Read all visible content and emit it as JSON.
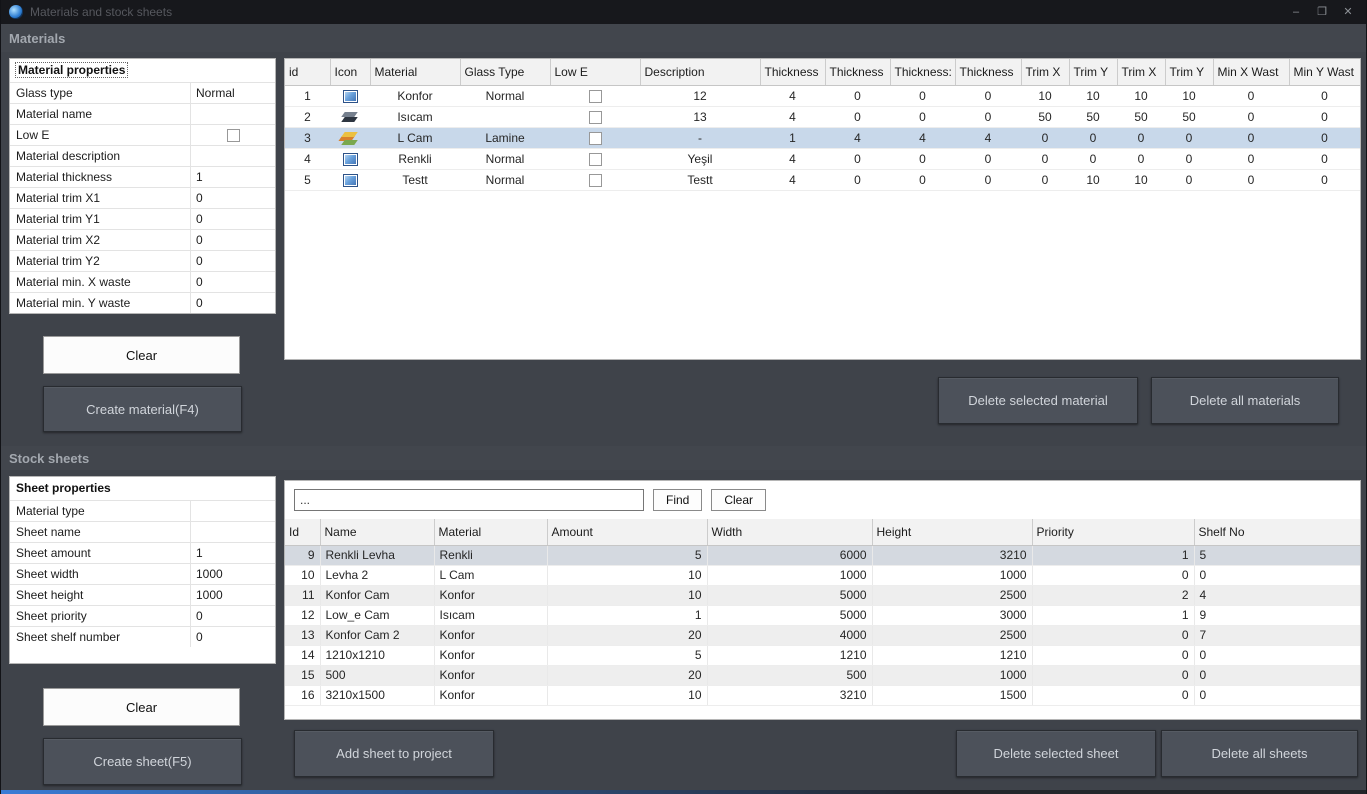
{
  "window": {
    "title": "Materials and stock sheets",
    "controls": {
      "minimize": "–",
      "maximize": "❐",
      "close": "✕"
    }
  },
  "materials": {
    "section_title": "Materials",
    "properties": {
      "title": "Material properties",
      "fields": [
        {
          "label": "Glass type",
          "value": "Normal",
          "type": "text"
        },
        {
          "label": "Material name",
          "value": "",
          "type": "text"
        },
        {
          "label": "Low E",
          "value": "",
          "type": "checkbox",
          "checked": false
        },
        {
          "label": "Material description",
          "value": "",
          "type": "text"
        },
        {
          "label": "Material thickness",
          "value": "1",
          "type": "text"
        },
        {
          "label": "Material trim X1",
          "value": "0",
          "type": "text"
        },
        {
          "label": "Material trim Y1",
          "value": "0",
          "type": "text"
        },
        {
          "label": "Material trim X2",
          "value": "0",
          "type": "text"
        },
        {
          "label": "Material trim Y2",
          "value": "0",
          "type": "text"
        },
        {
          "label": "Material min. X waste",
          "value": "0",
          "type": "text"
        },
        {
          "label": "Material min. Y waste",
          "value": "0",
          "type": "text"
        }
      ],
      "clear_label": "Clear",
      "create_label": "Create material(F4)"
    },
    "table": {
      "columns": [
        "id",
        "Icon",
        "Material",
        "Glass Type",
        "Low E",
        "Description",
        "Thickness",
        "Thickness",
        "Thickness:",
        "Thickness",
        "Trim X",
        "Trim Y",
        "Trim X",
        "Trim Y",
        "Min X Wast",
        "Min Y Wast"
      ],
      "rows": [
        {
          "id": "1",
          "icon": "blue-glass-icon",
          "material": "Konfor",
          "glass_type": "Normal",
          "low_e": false,
          "description": "12",
          "values": [
            "4",
            "0",
            "0",
            "0",
            "10",
            "10",
            "10",
            "10",
            "0",
            "0"
          ],
          "selected": false
        },
        {
          "id": "2",
          "icon": "insulated-glass-icon",
          "material": "Isıcam",
          "glass_type": "",
          "low_e": false,
          "description": "13",
          "values": [
            "4",
            "0",
            "0",
            "0",
            "50",
            "50",
            "50",
            "50",
            "0",
            "0"
          ],
          "selected": false
        },
        {
          "id": "3",
          "icon": "laminated-glass-icon",
          "material": "L Cam",
          "glass_type": "Lamine",
          "low_e": false,
          "description": "-",
          "values": [
            "1",
            "4",
            "4",
            "4",
            "0",
            "0",
            "0",
            "0",
            "0",
            "0"
          ],
          "selected": true
        },
        {
          "id": "4",
          "icon": "blue-glass-icon",
          "material": "Renkli",
          "glass_type": "Normal",
          "low_e": false,
          "description": "Yeşil",
          "values": [
            "4",
            "0",
            "0",
            "0",
            "0",
            "0",
            "0",
            "0",
            "0",
            "0"
          ],
          "selected": false
        },
        {
          "id": "5",
          "icon": "blue-glass-icon",
          "material": "Testt",
          "glass_type": "Normal",
          "low_e": false,
          "description": "Testt",
          "values": [
            "4",
            "0",
            "0",
            "0",
            "0",
            "10",
            "10",
            "0",
            "0",
            "0"
          ],
          "selected": false
        }
      ]
    },
    "delete_selected_label": "Delete selected material",
    "delete_all_label": "Delete all materials"
  },
  "stock_sheets": {
    "section_title": "Stock sheets",
    "properties": {
      "title": "Sheet properties",
      "fields": [
        {
          "label": "Material type",
          "value": "",
          "type": "text"
        },
        {
          "label": "Sheet name",
          "value": "",
          "type": "text"
        },
        {
          "label": "Sheet amount",
          "value": "1",
          "type": "text"
        },
        {
          "label": "Sheet width",
          "value": "1000",
          "type": "text"
        },
        {
          "label": "Sheet height",
          "value": "1000",
          "type": "text"
        },
        {
          "label": "Sheet priority",
          "value": "0",
          "type": "text"
        },
        {
          "label": "Sheet shelf number",
          "value": "0",
          "type": "text"
        }
      ],
      "clear_label": "Clear",
      "create_label": "Create sheet(F5)"
    },
    "search": {
      "value": "...",
      "find_label": "Find",
      "clear_label": "Clear"
    },
    "table": {
      "columns": [
        "Id",
        "Name",
        "Material",
        "Amount",
        "Width",
        "Height",
        "Priority",
        "Shelf No"
      ],
      "rows": [
        {
          "id": "9",
          "name": "Renkli Levha",
          "material": "Renkli",
          "amount": "5",
          "width": "6000",
          "height": "3210",
          "priority": "1",
          "shelf": "5",
          "selected": true
        },
        {
          "id": "10",
          "name": "Levha 2",
          "material": "L Cam",
          "amount": "10",
          "width": "1000",
          "height": "1000",
          "priority": "0",
          "shelf": "0",
          "selected": false
        },
        {
          "id": "11",
          "name": "Konfor Cam",
          "material": "Konfor",
          "amount": "10",
          "width": "5000",
          "height": "2500",
          "priority": "2",
          "shelf": "4",
          "selected": false
        },
        {
          "id": "12",
          "name": "Low_e Cam",
          "material": "Isıcam",
          "amount": "1",
          "width": "5000",
          "height": "3000",
          "priority": "1",
          "shelf": "9",
          "selected": false
        },
        {
          "id": "13",
          "name": "Konfor Cam 2",
          "material": "Konfor",
          "amount": "20",
          "width": "4000",
          "height": "2500",
          "priority": "0",
          "shelf": "7",
          "selected": false
        },
        {
          "id": "14",
          "name": "1210x1210",
          "material": "Konfor",
          "amount": "5",
          "width": "1210",
          "height": "1210",
          "priority": "0",
          "shelf": "0",
          "selected": false
        },
        {
          "id": "15",
          "name": "500",
          "material": "Konfor",
          "amount": "20",
          "width": "500",
          "height": "1000",
          "priority": "0",
          "shelf": "0",
          "selected": false
        },
        {
          "id": "16",
          "name": "3210x1500",
          "material": "Konfor",
          "amount": "10",
          "width": "3210",
          "height": "1500",
          "priority": "0",
          "shelf": "0",
          "selected": false
        }
      ]
    },
    "add_button_label": "Add sheet to project",
    "delete_selected_label": "Delete selected sheet",
    "delete_all_label": "Delete all sheets"
  }
}
